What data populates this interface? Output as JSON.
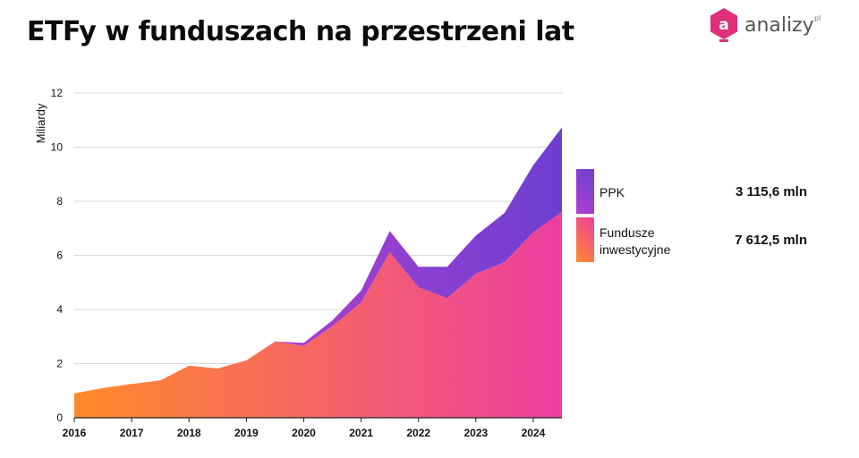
{
  "title": "ETFy w funduszach na przestrzeni lat",
  "logo": {
    "text": "analizy",
    "superscript": "pl",
    "mark": "a"
  },
  "colors": {
    "background": "#ffffff",
    "area_start": "#ff8a2a",
    "area_end": "#ec3fa0",
    "ppk_start": "#b03fd0",
    "ppk_end": "#6c3fd0",
    "logo_mark": "#e0307a"
  },
  "chart_data": {
    "type": "area",
    "stacked": true,
    "title": "ETFy w funduszach na przestrzeni lat",
    "ylabel": "Miliardy",
    "xlabel": "",
    "ylim": [
      0,
      12
    ],
    "y_ticks": [
      "0",
      "2",
      "4",
      "6",
      "8",
      "10",
      "12"
    ],
    "x_ticks": [
      "2016",
      "2017",
      "2018",
      "2019",
      "2020",
      "2021",
      "2022",
      "2023",
      "2024"
    ],
    "grid": true,
    "legend_position": "right",
    "x": [
      2016.0,
      2016.5,
      2017.0,
      2017.5,
      2018.0,
      2018.5,
      2019.0,
      2019.5,
      2020.0,
      2020.5,
      2021.0,
      2021.5,
      2022.0,
      2022.5,
      2023.0,
      2023.5,
      2024.0,
      2024.5
    ],
    "series": [
      {
        "name": "Fundusze inwestycyjne",
        "values": [
          0.9,
          1.1,
          1.25,
          1.38,
          1.92,
          1.82,
          2.12,
          2.82,
          2.65,
          3.38,
          4.25,
          6.12,
          4.82,
          4.42,
          5.32,
          5.75,
          6.85,
          7.61
        ]
      },
      {
        "name": "PPK",
        "values": [
          0,
          0,
          0,
          0,
          0,
          0,
          0,
          0,
          0.12,
          0.22,
          0.45,
          0.78,
          0.76,
          1.16,
          1.41,
          1.82,
          2.48,
          3.12
        ]
      }
    ],
    "legend": [
      {
        "label": "PPK",
        "value": "3 115,6 mln"
      },
      {
        "label": "Fundusze\ninwestycyjne",
        "value": "7 612,5 mln"
      }
    ]
  }
}
